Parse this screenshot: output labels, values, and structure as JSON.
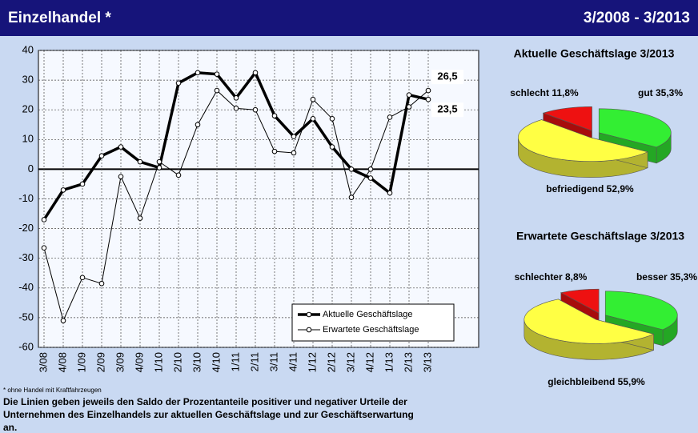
{
  "header": {
    "title": "Einzelhandel *",
    "period": "3/2008 - 3/2013"
  },
  "footnote": "* ohne Handel mit Kraftfahrzeugen",
  "note": [
    "Die Linien geben jeweils den Saldo der Prozentanteile positiver und negativer Urteile der",
    "Unternehmen des Einzelhandels zur aktuellen Geschäftslage und zur Geschäftserwartung",
    "an."
  ],
  "chart_data": [
    {
      "type": "line",
      "categories": [
        "3/08",
        "4/08",
        "1/09",
        "2/09",
        "3/09",
        "4/09",
        "1/10",
        "2/10",
        "3/10",
        "4/10",
        "1/11",
        "2/11",
        "3/11",
        "4/11",
        "1/12",
        "2/12",
        "3/12",
        "4/12",
        "1/13",
        "2/13",
        "3/13"
      ],
      "series": [
        {
          "name": "Aktuelle Geschäftslage",
          "color": "#000000",
          "values": [
            -17,
            -7,
            -5,
            4.5,
            7.5,
            2.5,
            0.5,
            29,
            32.5,
            32,
            24,
            32.5,
            18,
            11,
            17,
            7.5,
            0,
            -3,
            -8,
            25,
            23.5
          ],
          "value_labels": [
            null,
            null,
            null,
            null,
            null,
            null,
            null,
            null,
            null,
            null,
            null,
            null,
            null,
            null,
            null,
            null,
            null,
            null,
            null,
            null,
            "23,5"
          ]
        },
        {
          "name": "Erwartete Geschäftslage",
          "color": "#000000",
          "values": [
            -26.5,
            -51,
            -36.5,
            -38.5,
            -2.5,
            -16.5,
            2.5,
            -2,
            15,
            26.5,
            20.5,
            20,
            6,
            5.5,
            23.5,
            17,
            -9.5,
            0,
            17.5,
            21,
            26.5
          ],
          "value_labels": [
            null,
            null,
            null,
            null,
            null,
            null,
            null,
            null,
            null,
            null,
            null,
            null,
            null,
            null,
            null,
            null,
            null,
            null,
            null,
            null,
            "26,5"
          ]
        }
      ],
      "ylim": [
        -60,
        40
      ],
      "yticks": [
        -60,
        -50,
        -40,
        -30,
        -20,
        -10,
        0,
        10,
        20,
        30,
        40
      ],
      "grid": true
    },
    {
      "type": "pie",
      "title": "Aktuelle Geschäftslage 3/2013",
      "categories": [
        "gut",
        "befriedigend",
        "schlecht"
      ],
      "values": [
        35.3,
        52.9,
        11.8
      ],
      "value_labels": [
        "35,3%",
        "52,9%",
        "11,8%"
      ],
      "colors": [
        "#33ee33",
        "#ffff44",
        "#ee1111"
      ]
    },
    {
      "type": "pie",
      "title": "Erwartete Geschäftslage 3/2013",
      "categories": [
        "besser",
        "gleichbleibend",
        "schlechter"
      ],
      "values": [
        35.3,
        55.9,
        8.8
      ],
      "value_labels": [
        "35,3%",
        "55,9%",
        "8,8%"
      ],
      "colors": [
        "#33ee33",
        "#ffff44",
        "#ee1111"
      ]
    }
  ]
}
